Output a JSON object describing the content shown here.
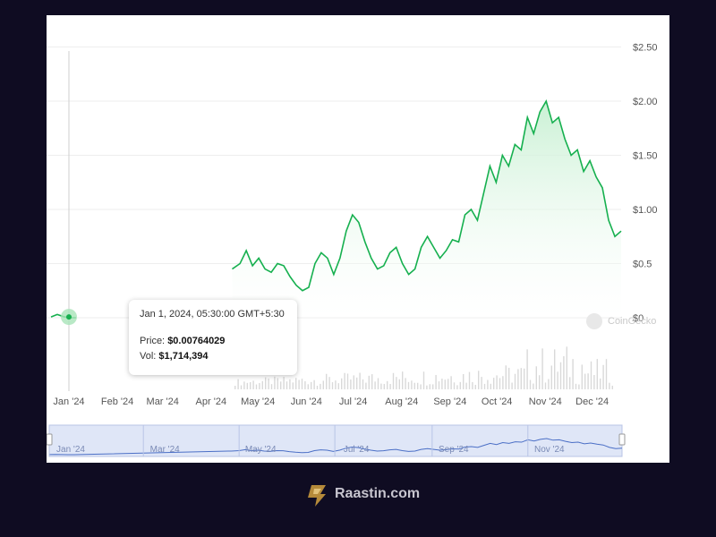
{
  "chart_data": {
    "type": "area",
    "x_unit": "date",
    "y_unit": "USD",
    "ylim": [
      0,
      2.5
    ],
    "y_ticks": [
      "$0",
      "$0.5",
      "$1.00",
      "$1.50",
      "$2.00",
      "$2.50"
    ],
    "x_ticks": [
      "Jan '24",
      "Feb '24",
      "Mar '24",
      "Apr '24",
      "May '24",
      "Jun '24",
      "Jul '24",
      "Aug '24",
      "Sep '24",
      "Oct '24",
      "Nov '24",
      "Dec '24"
    ],
    "navigator_ticks": [
      "Jan '24",
      "Mar '24",
      "May '24",
      "Jul '24",
      "Sep '24",
      "Nov '24"
    ],
    "series": [
      {
        "x": [
          "2024-01-01",
          "2024-01-05",
          "2024-01-09",
          "2024-01-13",
          "2024-01-17",
          "2024-04-26",
          "2024-05-01",
          "2024-05-05",
          "2024-05-09",
          "2024-05-13",
          "2024-05-17",
          "2024-05-21",
          "2024-05-25",
          "2024-05-29",
          "2024-06-02",
          "2024-06-06",
          "2024-06-10",
          "2024-06-14",
          "2024-06-18",
          "2024-06-22",
          "2024-06-26",
          "2024-06-30",
          "2024-07-04",
          "2024-07-08",
          "2024-07-12",
          "2024-07-16",
          "2024-07-20",
          "2024-07-24",
          "2024-07-28",
          "2024-08-01",
          "2024-08-05",
          "2024-08-09",
          "2024-08-13",
          "2024-08-17",
          "2024-08-21",
          "2024-08-25",
          "2024-08-29",
          "2024-09-02",
          "2024-09-06",
          "2024-09-10",
          "2024-09-14",
          "2024-09-18",
          "2024-09-22",
          "2024-09-26",
          "2024-09-30",
          "2024-10-04",
          "2024-10-08",
          "2024-10-12",
          "2024-10-16",
          "2024-10-20",
          "2024-10-24",
          "2024-10-28",
          "2024-11-01",
          "2024-11-05",
          "2024-11-09",
          "2024-11-13",
          "2024-11-17",
          "2024-11-21",
          "2024-11-25",
          "2024-11-29",
          "2024-12-03",
          "2024-12-07",
          "2024-12-11",
          "2024-12-15",
          "2024-12-19",
          "2024-12-23",
          "2024-12-27",
          "2024-12-31"
        ],
        "values": [
          0.00764,
          0.03,
          0.01,
          0.0,
          0.0,
          0.45,
          0.5,
          0.62,
          0.48,
          0.55,
          0.45,
          0.42,
          0.5,
          0.48,
          0.38,
          0.3,
          0.25,
          0.28,
          0.5,
          0.6,
          0.55,
          0.4,
          0.55,
          0.8,
          0.95,
          0.88,
          0.7,
          0.55,
          0.45,
          0.48,
          0.6,
          0.65,
          0.5,
          0.4,
          0.45,
          0.65,
          0.75,
          0.65,
          0.55,
          0.62,
          0.72,
          0.7,
          0.95,
          1.0,
          0.9,
          1.15,
          1.4,
          1.25,
          1.5,
          1.4,
          1.6,
          1.55,
          1.85,
          1.7,
          1.9,
          2.0,
          1.8,
          1.85,
          1.65,
          1.5,
          1.55,
          1.35,
          1.45,
          1.3,
          1.2,
          0.9,
          0.75,
          0.8
        ]
      }
    ],
    "tooltip": {
      "date": "Jan 1, 2024, 05:30:00 GMT+5:30",
      "price_label": "Price:",
      "price_value": "$0.00764029",
      "vol_label": "Vol:",
      "vol_value": "$1,714,394"
    },
    "watermark": "CoinGecko",
    "colors": {
      "line": "#16b04f",
      "area_top": "#c7f0d2",
      "grid": "#eeeeee",
      "navigator_line": "#4b6fc6",
      "navigator_bg": "#dfe6f7"
    }
  },
  "brand": {
    "name": "Raastin.com"
  }
}
